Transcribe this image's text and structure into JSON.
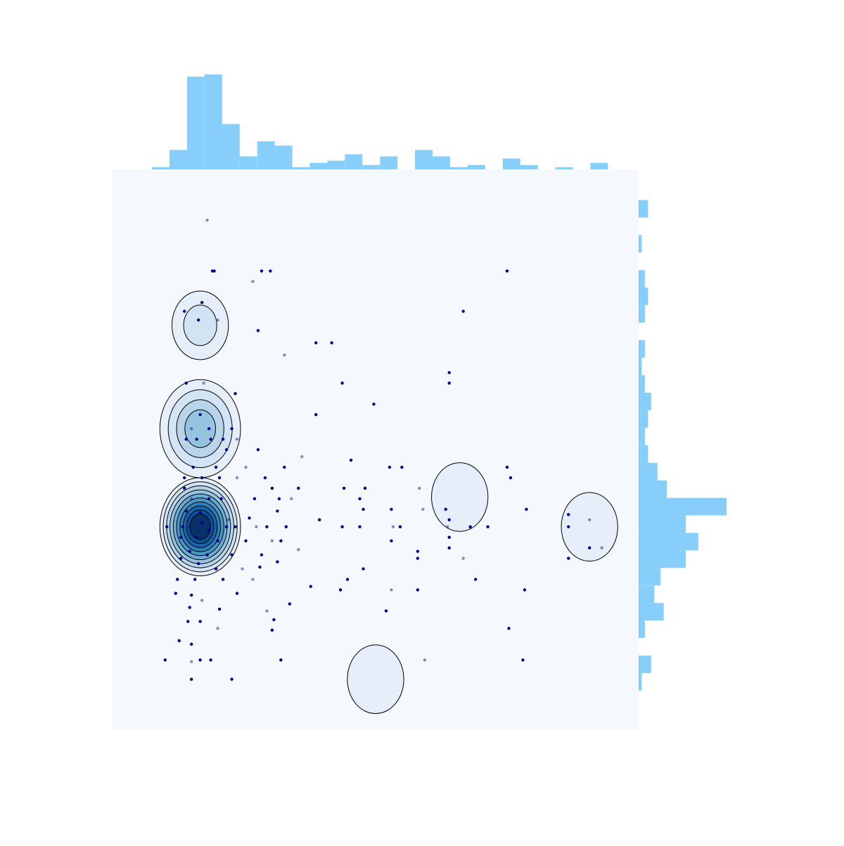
{
  "chart_data": {
    "type": "scatter",
    "title": "",
    "xlabel": "",
    "ylabel": "",
    "grid": false,
    "legend": "none",
    "xlim": [
      0,
      30
    ],
    "ylim": [
      0,
      32
    ],
    "colors": {
      "panel_bg": "#f5f9fe",
      "point": "#00008b",
      "marginal_hist": "#87cefa",
      "contour_line": "#000000",
      "kde_fill_scale": [
        "#e6eff9",
        "#d2e3f3",
        "#b7d4ea",
        "#94c4df",
        "#6aaed6",
        "#4a98c9",
        "#2e7ebc",
        "#1864aa",
        "#08519c",
        "#08306b"
      ]
    },
    "marginal_x_hist": {
      "bin_start": 2.25,
      "bin_width": 1.0,
      "counts": [
        1,
        9,
        43,
        44,
        21,
        6,
        13,
        11,
        1,
        3,
        4,
        7,
        2,
        6,
        0,
        9,
        6,
        1,
        2,
        0,
        5,
        2,
        0,
        1,
        0,
        3
      ]
    },
    "marginal_y_hist": {
      "bin_start": 2.25,
      "bin_width": 1.0,
      "counts": [
        1,
        4,
        0,
        2,
        8,
        5,
        7,
        15,
        19,
        15,
        28,
        9,
        6,
        3,
        2,
        3,
        4,
        2,
        1,
        2,
        0,
        2,
        3,
        2,
        0,
        1,
        0,
        3,
        0,
        0
      ]
    },
    "kde_peaks": [
      {
        "x": 5.0,
        "y": 11.6,
        "level": 10
      },
      {
        "x": 5.0,
        "y": 17.2,
        "level": 4
      },
      {
        "x": 5.0,
        "y": 23.1,
        "level": 2
      },
      {
        "x": 19.8,
        "y": 13.3,
        "level": 1
      },
      {
        "x": 15.0,
        "y": 2.9,
        "level": 1
      },
      {
        "x": 27.2,
        "y": 11.6,
        "level": 1
      }
    ],
    "points": [
      [
        5.4,
        29.1
      ],
      [
        5.8,
        26.2
      ],
      [
        5.7,
        26.2
      ],
      [
        8.5,
        26.2
      ],
      [
        9.0,
        26.2
      ],
      [
        8.0,
        25.6
      ],
      [
        22.5,
        26.2
      ],
      [
        4.1,
        23.9
      ],
      [
        5.1,
        24.4
      ],
      [
        4.9,
        23.4
      ],
      [
        6.0,
        23.4
      ],
      [
        20.0,
        23.9
      ],
      [
        8.3,
        22.8
      ],
      [
        11.6,
        22.1
      ],
      [
        12.5,
        22.1
      ],
      [
        9.8,
        21.4
      ],
      [
        19.2,
        20.4
      ],
      [
        19.2,
        19.8
      ],
      [
        13.1,
        19.8
      ],
      [
        4.2,
        19.8
      ],
      [
        5.2,
        19.8
      ],
      [
        7.0,
        19.2
      ],
      [
        14.9,
        18.6
      ],
      [
        11.6,
        18.0
      ],
      [
        5.0,
        18.0
      ],
      [
        4.5,
        17.2
      ],
      [
        5.5,
        17.2
      ],
      [
        4.8,
        16.6
      ],
      [
        6.3,
        16.6
      ],
      [
        6.8,
        17.2
      ],
      [
        7.1,
        16.6
      ],
      [
        5.6,
        16.6
      ],
      [
        4.2,
        16.6
      ],
      [
        6.5,
        16.0
      ],
      [
        8.3,
        16.0
      ],
      [
        10.8,
        15.6
      ],
      [
        13.6,
        15.4
      ],
      [
        16.5,
        15.0
      ],
      [
        4.6,
        15.0
      ],
      [
        5.9,
        15.0
      ],
      [
        7.6,
        15.0
      ],
      [
        9.8,
        15.0
      ],
      [
        4.1,
        14.4
      ],
      [
        5.1,
        14.4
      ],
      [
        6.1,
        14.4
      ],
      [
        7.1,
        14.4
      ],
      [
        8.7,
        14.4
      ],
      [
        9.1,
        13.8
      ],
      [
        10.6,
        13.8
      ],
      [
        14.4,
        13.8
      ],
      [
        17.5,
        13.8
      ],
      [
        22.5,
        15.0
      ],
      [
        22.7,
        14.4
      ],
      [
        15.8,
        15.0
      ],
      [
        4.1,
        13.8
      ],
      [
        4.5,
        13.2
      ],
      [
        5.5,
        13.2
      ],
      [
        6.2,
        13.2
      ],
      [
        8.1,
        13.2
      ],
      [
        9.5,
        13.2
      ],
      [
        10.2,
        13.2
      ],
      [
        13.2,
        13.8
      ],
      [
        14.1,
        13.2
      ],
      [
        14.3,
        12.6
      ],
      [
        15.9,
        12.6
      ],
      [
        17.7,
        12.6
      ],
      [
        19.0,
        12.6
      ],
      [
        23.6,
        12.6
      ],
      [
        4.2,
        12.5
      ],
      [
        5.0,
        12.4
      ],
      [
        6.6,
        12.0
      ],
      [
        7.8,
        12.1
      ],
      [
        9.4,
        12.5
      ],
      [
        11.8,
        12.0
      ],
      [
        19.2,
        12.0
      ],
      [
        19.1,
        11.6
      ],
      [
        20.4,
        11.6
      ],
      [
        26.0,
        12.3
      ],
      [
        3.1,
        11.6
      ],
      [
        4.0,
        11.6
      ],
      [
        4.4,
        11.6
      ],
      [
        5.1,
        11.8
      ],
      [
        5.5,
        11.4
      ],
      [
        6.5,
        11.6
      ],
      [
        7.0,
        11.6
      ],
      [
        8.2,
        11.6
      ],
      [
        8.8,
        11.6
      ],
      [
        9.9,
        11.6
      ],
      [
        13.1,
        11.6
      ],
      [
        14.1,
        11.6
      ],
      [
        16.0,
        11.6
      ],
      [
        16.4,
        11.6
      ],
      [
        19.2,
        11.0
      ],
      [
        21.4,
        11.6
      ],
      [
        26.0,
        11.6
      ],
      [
        27.2,
        12.0
      ],
      [
        3.9,
        11.0
      ],
      [
        4.8,
        11.0
      ],
      [
        6.0,
        10.8
      ],
      [
        7.6,
        10.8
      ],
      [
        9.1,
        10.8
      ],
      [
        9.6,
        10.8
      ],
      [
        15.9,
        10.8
      ],
      [
        19.2,
        10.4
      ],
      [
        27.2,
        10.4
      ],
      [
        27.9,
        10.4
      ],
      [
        4.4,
        10.2
      ],
      [
        5.4,
        10.0
      ],
      [
        6.8,
        10.0
      ],
      [
        8.5,
        10.0
      ],
      [
        10.6,
        10.3
      ],
      [
        17.4,
        10.2
      ],
      [
        3.9,
        9.8
      ],
      [
        4.9,
        9.5
      ],
      [
        5.9,
        9.2
      ],
      [
        7.4,
        9.2
      ],
      [
        8.4,
        9.3
      ],
      [
        9.4,
        9.6
      ],
      [
        14.3,
        9.2
      ],
      [
        17.4,
        9.8
      ],
      [
        20.0,
        9.8
      ],
      [
        26.0,
        9.8
      ],
      [
        3.7,
        8.6
      ],
      [
        4.7,
        8.6
      ],
      [
        6.3,
        8.6
      ],
      [
        8.0,
        8.6
      ],
      [
        13.4,
        8.6
      ],
      [
        20.7,
        8.6
      ],
      [
        3.6,
        7.8
      ],
      [
        4.5,
        7.7
      ],
      [
        5.1,
        7.4
      ],
      [
        7.1,
        7.8
      ],
      [
        10.1,
        7.2
      ],
      [
        11.3,
        8.2
      ],
      [
        13.0,
        8.0
      ],
      [
        15.9,
        8.0
      ],
      [
        17.4,
        8.0
      ],
      [
        23.5,
        8.0
      ],
      [
        4.4,
        7.0
      ],
      [
        6.1,
        6.9
      ],
      [
        8.8,
        6.8
      ],
      [
        9.2,
        6.3
      ],
      [
        15.6,
        6.8
      ],
      [
        4.3,
        6.2
      ],
      [
        5.0,
        6.2
      ],
      [
        6.0,
        5.8
      ],
      [
        9.1,
        5.7
      ],
      [
        3.8,
        5.1
      ],
      [
        4.5,
        4.9
      ],
      [
        22.6,
        5.8
      ],
      [
        4.5,
        3.9
      ],
      [
        3.0,
        4.0
      ],
      [
        5.0,
        4.0
      ],
      [
        5.6,
        4.0
      ],
      [
        9.6,
        4.0
      ],
      [
        17.8,
        4.0
      ],
      [
        23.4,
        4.0
      ],
      [
        4.5,
        2.9
      ],
      [
        6.8,
        2.9
      ]
    ]
  }
}
